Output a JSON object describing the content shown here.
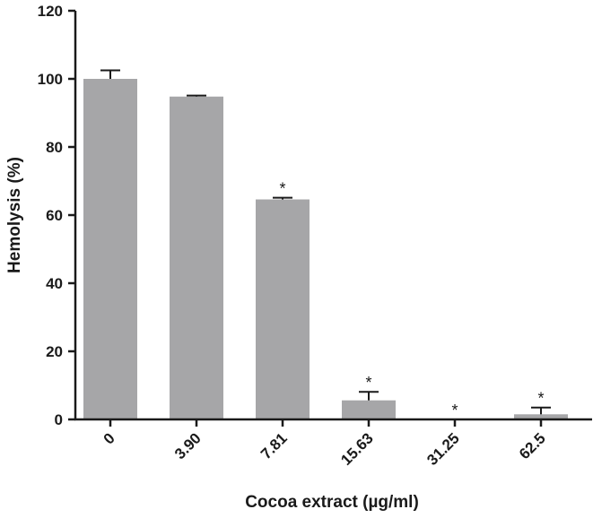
{
  "chart_data": {
    "type": "bar",
    "categories": [
      "0",
      "3.90",
      "7.81",
      "15.63",
      "31.25",
      "62.5"
    ],
    "values": [
      100,
      94.8,
      64.6,
      5.6,
      0,
      1.5
    ],
    "errors": [
      2.5,
      0.3,
      0.5,
      2.5,
      0,
      2.0
    ],
    "significance": [
      "",
      "",
      "*",
      "*",
      "*",
      "*"
    ],
    "xlabel": "Cocoa extract (µg/ml)",
    "ylabel": "Hemolysis (%)",
    "ylim": [
      0,
      120
    ],
    "yticks": [
      0,
      20,
      40,
      60,
      80,
      100,
      120
    ],
    "bar_color": "#a6a6a8",
    "axis_color": "#1a1a1a",
    "grid": false,
    "legend": "none"
  }
}
